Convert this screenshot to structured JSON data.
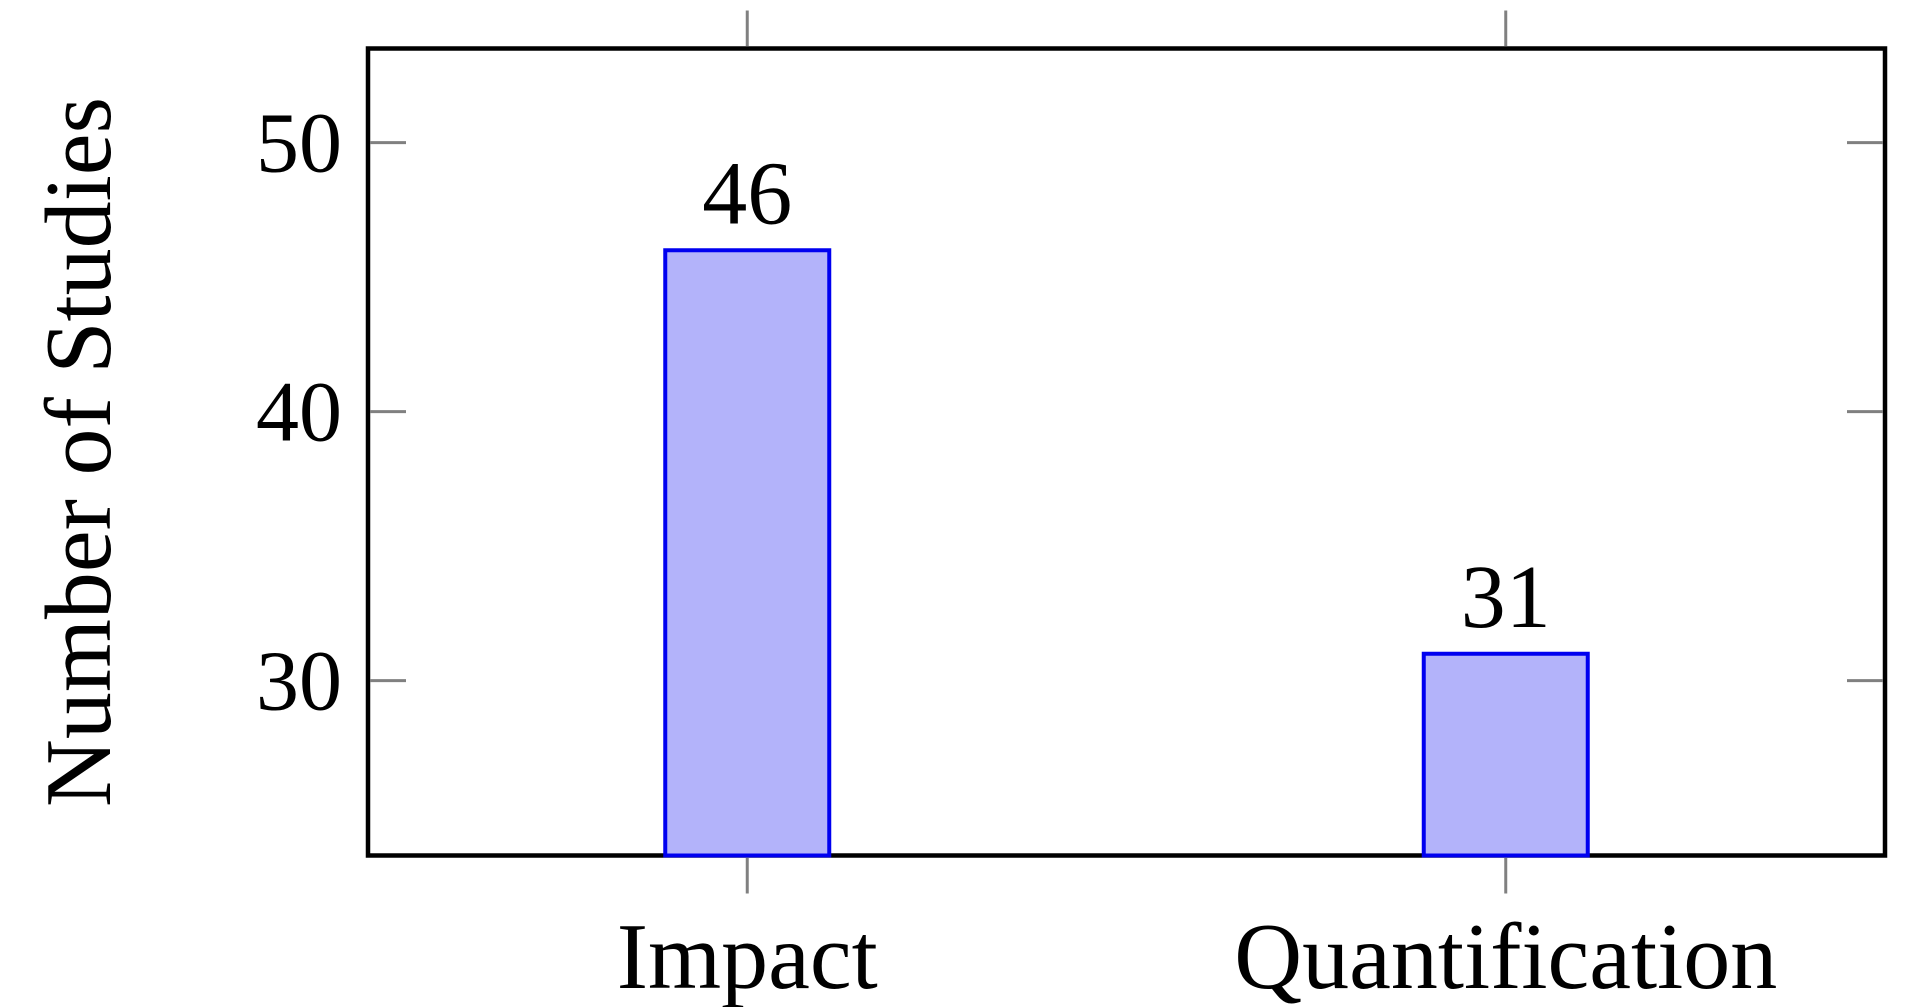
{
  "chart_data": {
    "type": "bar",
    "title": "",
    "xlabel": "",
    "ylabel": "Number of Studies",
    "categories": [
      "Impact",
      "Quantification"
    ],
    "values": [
      46,
      31
    ],
    "bar_value_labels": [
      "46",
      "31"
    ],
    "yticks": [
      30,
      40,
      50
    ],
    "ytick_labels": [
      "30",
      "40",
      "50"
    ],
    "ylim": [
      23.5,
      53.5
    ],
    "grid": false,
    "legend": null,
    "tick_style": {
      "x_direction": "out",
      "y_direction": "in",
      "mirrored": true
    },
    "colors": {
      "bar_fill": "#b3b3fa",
      "bar_border": "#0000f0",
      "value_label": "#0000f0",
      "tick": "#808080",
      "axis": "#000000",
      "text": "#000000",
      "background": "#ffffff"
    }
  }
}
